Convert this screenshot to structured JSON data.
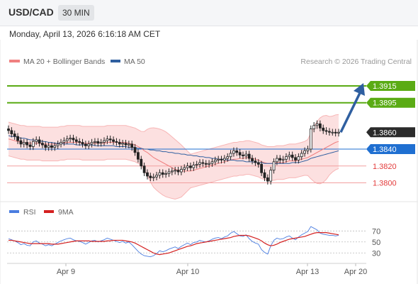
{
  "header": {
    "symbol": "USD/CAD",
    "timeframe": "30 MIN"
  },
  "timestamp": "Monday, April 13, 2026 6:16:18 AM CET",
  "legend": {
    "ma20_label": "MA 20 + Bollinger Bands",
    "ma50_label": "MA 50",
    "source": "Research © 2026 Trading Central"
  },
  "colors": {
    "resistance": "#5aab14",
    "support": "#e33b3b",
    "current": "#2b2b2b",
    "pivot": "#1f6fd1",
    "arrow": "#2f5fa0",
    "ma20": "#f08080",
    "ma50": "#2f5fa0",
    "rsi": "#4a7de0",
    "rsi_ma": "#d42020"
  },
  "chart_data": [
    {
      "type": "candlestick",
      "title": "USD/CAD 30 MIN",
      "x_ticks": [
        "Apr 9",
        "Apr 10",
        "Apr 13",
        "Apr 20"
      ],
      "ylim": [
        1.3776,
        1.3936
      ],
      "price_levels": [
        {
          "label": "1.3915",
          "value": 1.3915,
          "kind": "resistance"
        },
        {
          "label": "1.3895",
          "value": 1.3895,
          "kind": "resistance"
        },
        {
          "label": "1.3860",
          "value": 1.386,
          "kind": "current"
        },
        {
          "label": "1.3840",
          "value": 1.384,
          "kind": "pivot"
        },
        {
          "label": "1.3820",
          "value": 1.382,
          "kind": "support"
        },
        {
          "label": "1.3800",
          "value": 1.38,
          "kind": "support"
        }
      ],
      "projection": {
        "from": 1.386,
        "to": 1.3915
      },
      "close": [
        1.3862,
        1.3858,
        1.3855,
        1.385,
        1.3846,
        1.3848,
        1.3845,
        1.3843,
        1.3849,
        1.3851,
        1.3847,
        1.3845,
        1.3842,
        1.3844,
        1.3842,
        1.3844,
        1.3846,
        1.3848,
        1.385,
        1.3852,
        1.3853,
        1.3851,
        1.3849,
        1.3848,
        1.3846,
        1.3844,
        1.3846,
        1.3848,
        1.3849,
        1.3847,
        1.3848,
        1.385,
        1.3852,
        1.3851,
        1.3849,
        1.3848,
        1.3846,
        1.3847,
        1.3845,
        1.3846,
        1.3842,
        1.3836,
        1.3828,
        1.382,
        1.3812,
        1.3808,
        1.3806,
        1.3807,
        1.3809,
        1.3812,
        1.381,
        1.3811,
        1.3813,
        1.3814,
        1.3815,
        1.3813,
        1.3816,
        1.3818,
        1.382,
        1.3818,
        1.3821,
        1.3822,
        1.3824,
        1.3823,
        1.3822,
        1.3823,
        1.3825,
        1.3827,
        1.3828,
        1.3827,
        1.3829,
        1.3831,
        1.3835,
        1.3838,
        1.3836,
        1.3833,
        1.3832,
        1.3834,
        1.3829,
        1.3826,
        1.3824,
        1.3822,
        1.3812,
        1.3806,
        1.3802,
        1.3815,
        1.3825,
        1.3829,
        1.3827,
        1.3828,
        1.3831,
        1.3833,
        1.383,
        1.3827,
        1.3831,
        1.3835,
        1.3838,
        1.384,
        1.3864,
        1.3868,
        1.387,
        1.3865,
        1.3862,
        1.3861,
        1.386,
        1.386,
        1.3859,
        1.386
      ],
      "ma20": [
        1.3852,
        1.3851,
        1.385,
        1.3849,
        1.3848,
        1.3848,
        1.3847,
        1.3847,
        1.3847,
        1.3847,
        1.3847,
        1.3846,
        1.3846,
        1.3846,
        1.3846,
        1.3846,
        1.3846,
        1.3847,
        1.3847,
        1.3848,
        1.3848,
        1.3848,
        1.3848,
        1.3848,
        1.3847,
        1.3847,
        1.3847,
        1.3847,
        1.3847,
        1.3847,
        1.3847,
        1.3847,
        1.3848,
        1.3848,
        1.3848,
        1.3848,
        1.3848,
        1.3848,
        1.3848,
        1.3847,
        1.3846,
        1.3845,
        1.3843,
        1.3841,
        1.3838,
        1.3836,
        1.3833,
        1.383,
        1.3828,
        1.3826,
        1.3824,
        1.3822,
        1.382,
        1.3818,
        1.3816,
        1.3815,
        1.3814,
        1.3814,
        1.3814,
        1.3814,
        1.3815,
        1.3816,
        1.3817,
        1.3818,
        1.3819,
        1.382,
        1.3821,
        1.3822,
        1.3823,
        1.3824,
        1.3825,
        1.3826,
        1.3827,
        1.3828,
        1.3828,
        1.3829,
        1.3829,
        1.383,
        1.383,
        1.3829,
        1.3828,
        1.3827,
        1.3825,
        1.3824,
        1.3823,
        1.3823,
        1.3823,
        1.3824,
        1.3824,
        1.3824,
        1.3825,
        1.3826,
        1.3826,
        1.3826,
        1.3827,
        1.3828,
        1.3829,
        1.383,
        1.3832,
        1.3834,
        1.3836,
        1.3838,
        1.384,
        1.3842,
        1.3844,
        1.3846,
        1.3848,
        1.3849
      ],
      "ma50": [
        1.3856,
        1.3855,
        1.3855,
        1.3854,
        1.3853,
        1.3853,
        1.3852,
        1.3851,
        1.3851,
        1.385,
        1.385,
        1.3849,
        1.3849,
        1.3848,
        1.3848,
        1.3847,
        1.3847,
        1.3847,
        1.3846,
        1.3846,
        1.3846,
        1.3846,
        1.3845,
        1.3845,
        1.3845,
        1.3845,
        1.3845,
        1.3845,
        1.3844,
        1.3844,
        1.3844,
        1.3844,
        1.3844,
        1.3844,
        1.3844,
        1.3843,
        1.3843,
        1.3843,
        1.3843,
        1.3842,
        1.3842,
        1.3842,
        1.3841,
        1.3841,
        1.384,
        1.384,
        1.3839,
        1.3839,
        1.3838,
        1.3838,
        1.3837,
        1.3837,
        1.3836,
        1.3836,
        1.3835,
        1.3835,
        1.3834,
        1.3834,
        1.3833,
        1.3833,
        1.3832,
        1.3832,
        1.3831,
        1.3831,
        1.383,
        1.383,
        1.3829,
        1.3829,
        1.3828,
        1.3828,
        1.3828,
        1.3827,
        1.3827,
        1.3827,
        1.3826,
        1.3826,
        1.3826,
        1.3825,
        1.3825,
        1.3825,
        1.3824,
        1.3824,
        1.3824,
        1.3823,
        1.3823,
        1.3823,
        1.3823,
        1.3823,
        1.3823,
        1.3823,
        1.3823,
        1.3823,
        1.3824,
        1.3824,
        1.3824,
        1.3825,
        1.3826,
        1.3827,
        1.3829,
        1.383,
        1.3831,
        1.3832,
        1.3833,
        1.3834,
        1.3835,
        1.3836,
        1.3837,
        1.3838
      ]
    },
    {
      "type": "line",
      "series": [
        {
          "name": "RSI",
          "values": [
            56,
            54,
            52,
            49,
            45,
            47,
            44,
            43,
            50,
            52,
            48,
            46,
            43,
            45,
            43,
            46,
            49,
            52,
            54,
            56,
            57,
            54,
            52,
            51,
            49,
            46,
            49,
            52,
            53,
            50,
            52,
            54,
            57,
            55,
            53,
            51,
            49,
            51,
            48,
            50,
            45,
            39,
            33,
            28,
            25,
            24,
            23,
            25,
            29,
            34,
            32,
            34,
            37,
            39,
            41,
            38,
            42,
            45,
            48,
            45,
            49,
            50,
            53,
            51,
            50,
            52,
            55,
            57,
            58,
            56,
            59,
            61,
            66,
            69,
            65,
            61,
            60,
            63,
            56,
            51,
            48,
            46,
            36,
            31,
            28,
            43,
            53,
            57,
            55,
            56,
            59,
            61,
            57,
            54,
            59,
            63,
            66,
            69,
            78,
            75,
            72,
            66,
            64,
            63,
            62,
            62,
            61,
            62
          ]
        },
        {
          "name": "9MA",
          "values": [
            53,
            53,
            52,
            51,
            50,
            49,
            48,
            47,
            47,
            47,
            47,
            47,
            47,
            47,
            46,
            46,
            46,
            47,
            48,
            49,
            50,
            51,
            52,
            52,
            52,
            52,
            52,
            51,
            51,
            51,
            51,
            51,
            52,
            52,
            53,
            53,
            53,
            53,
            52,
            51,
            50,
            48,
            45,
            42,
            39,
            36,
            33,
            30,
            28,
            27,
            28,
            29,
            30,
            32,
            34,
            36,
            38,
            40,
            42,
            43,
            45,
            47,
            48,
            49,
            50,
            51,
            52,
            53,
            54,
            55,
            56,
            57,
            58,
            60,
            61,
            62,
            62,
            62,
            61,
            59,
            57,
            55,
            52,
            48,
            45,
            43,
            44,
            46,
            49,
            51,
            53,
            55,
            56,
            57,
            58,
            59,
            60,
            62,
            64,
            66,
            67,
            67,
            67,
            67,
            66,
            65,
            64,
            63
          ]
        }
      ],
      "ylim": [
        20,
        82
      ],
      "y_ticks": [
        "70",
        "50",
        "30"
      ]
    }
  ]
}
